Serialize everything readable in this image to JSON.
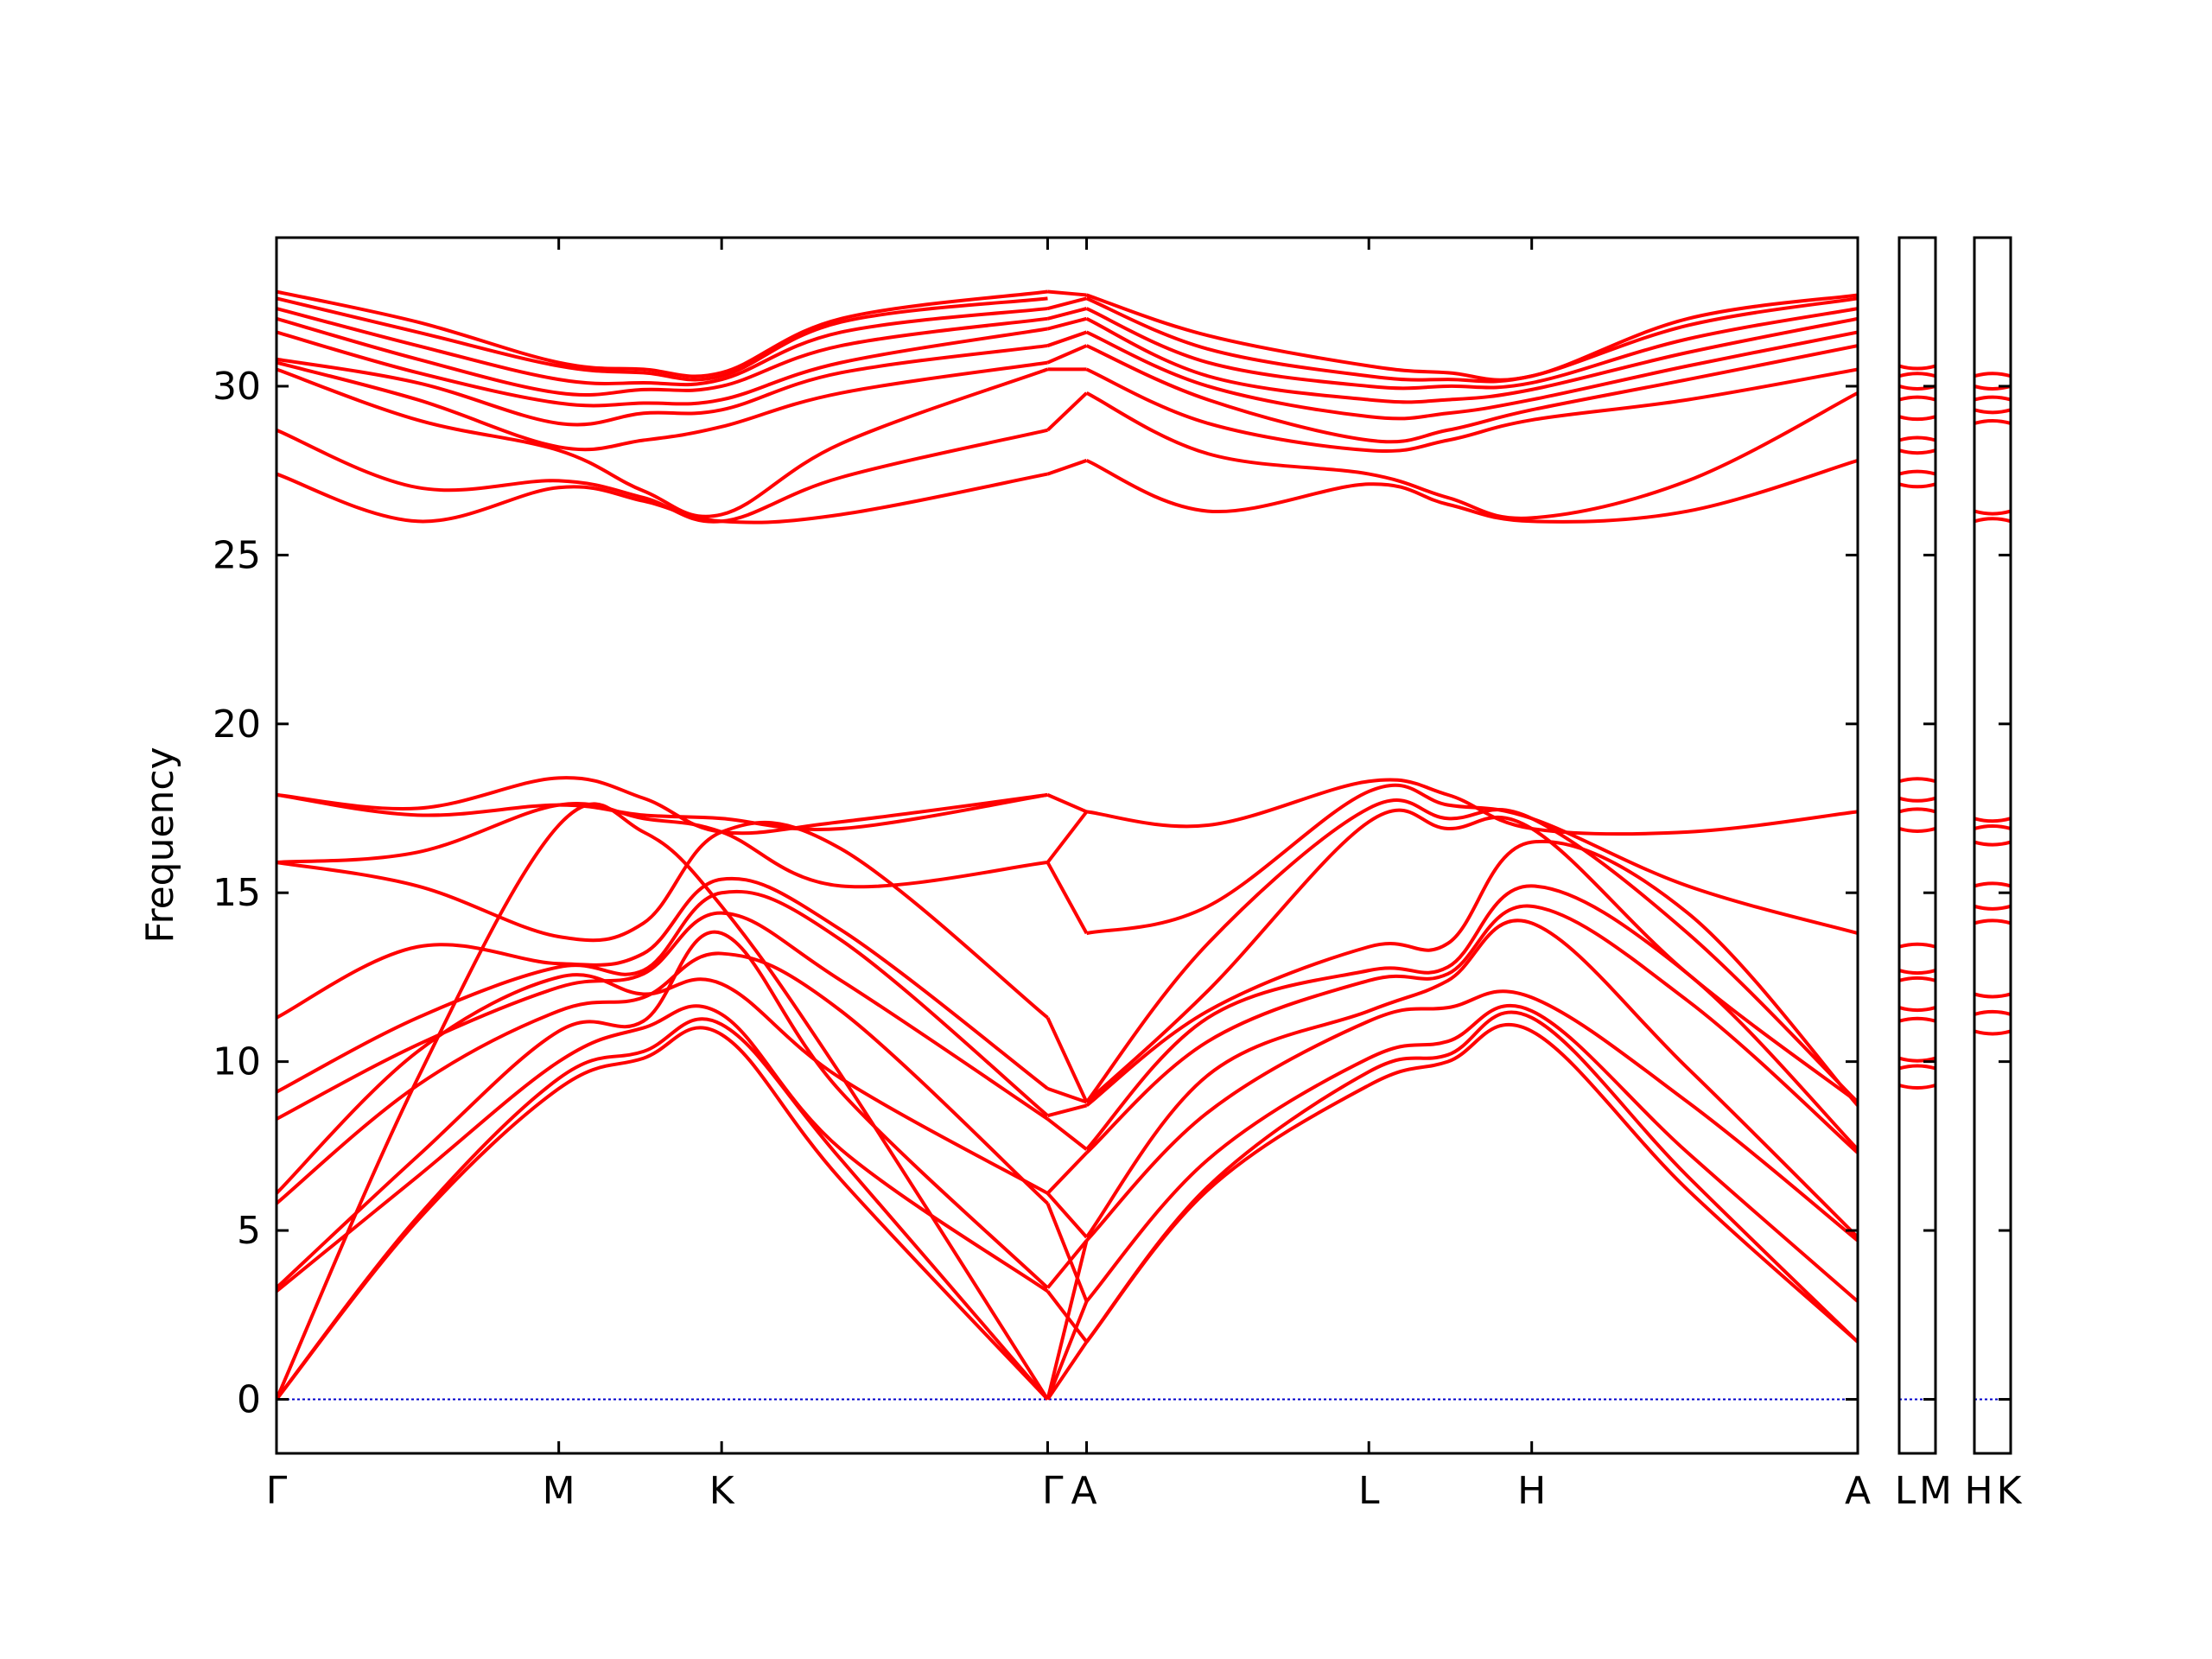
{
  "chart_data": {
    "type": "line",
    "title": "",
    "xlabel": "",
    "ylabel": "Frequency",
    "ylim": [
      -1.6,
      34.4
    ],
    "yticks": [
      0,
      5,
      10,
      15,
      20,
      25,
      30
    ],
    "grid": false,
    "legend": "none",
    "line_color": "#ff0000",
    "zero_line_color": "#0000cc",
    "x_ticks": [
      {
        "label": "Γ",
        "x": 0.0
      },
      {
        "label": "M",
        "x": 1.0
      },
      {
        "label": "K",
        "x": 1.577
      },
      {
        "label": "Γ",
        "x": 2.732
      },
      {
        "label": "A",
        "x": 2.87
      },
      {
        "label": "L",
        "x": 3.87
      },
      {
        "label": "H",
        "x": 4.447
      },
      {
        "label": "A",
        "x": 5.602
      }
    ],
    "side_panels": [
      {
        "labels": [
          "L",
          "M"
        ],
        "frequencies": [
          9.3,
          9.8,
          10.1,
          11.2,
          11.6,
          12.4,
          12.7,
          13.4,
          16.9,
          17.4,
          17.8,
          18.3,
          27.1,
          27.4,
          28.1,
          28.4,
          29.1,
          29.6,
          30.0,
          30.3,
          30.6
        ]
      },
      {
        "labels": [
          "H",
          "K"
        ],
        "frequencies": [
          10.9,
          11.4,
          12.0,
          14.1,
          14.6,
          15.2,
          16.5,
          16.9,
          17.2,
          26.0,
          26.3,
          28.9,
          29.3,
          29.6,
          30.0,
          30.3
        ]
      }
    ],
    "series": [
      {
        "x": [
          0.0,
          0.5,
          1.0,
          1.3,
          1.577,
          2.0,
          2.732
        ],
        "values": [
          0.0,
          5.3,
          9.2,
          10.1,
          10.8,
          6.5,
          0.0
        ]
      },
      {
        "x": [
          0.0,
          0.5,
          1.0,
          1.3,
          1.577,
          2.0,
          2.732
        ],
        "values": [
          0.0,
          5.4,
          9.5,
          10.3,
          11.1,
          7.1,
          0.0
        ]
      },
      {
        "x": [
          0.0,
          0.5,
          1.0,
          1.3,
          1.577,
          2.0,
          2.732
        ],
        "values": [
          0.0,
          9.5,
          17.0,
          16.8,
          14.6,
          9.6,
          0.0
        ]
      },
      {
        "x": [
          0.0,
          0.5,
          1.0,
          1.3,
          1.577,
          2.0,
          2.732
        ],
        "values": [
          3.2,
          6.6,
          10.0,
          11.0,
          11.4,
          7.4,
          3.2
        ]
      },
      {
        "x": [
          0.0,
          0.5,
          1.0,
          1.3,
          1.577,
          2.0,
          2.732
        ],
        "values": [
          3.3,
          7.2,
          10.9,
          11.2,
          13.8,
          9.1,
          3.3
        ]
      },
      {
        "x": [
          0.0,
          0.5,
          1.0,
          1.3,
          1.577,
          2.0,
          2.732
        ],
        "values": [
          5.8,
          9.3,
          11.5,
          11.9,
          13.2,
          11.5,
          5.8
        ]
      },
      {
        "x": [
          0.0,
          0.5,
          1.0,
          1.3,
          1.577,
          2.0,
          2.732
        ],
        "values": [
          6.1,
          10.3,
          12.5,
          12.0,
          12.3,
          9.5,
          6.1
        ]
      },
      {
        "x": [
          0.0,
          0.5,
          1.0,
          1.3,
          1.577,
          2.0,
          2.732
        ],
        "values": [
          8.3,
          10.5,
          12.2,
          12.6,
          14.4,
          12.4,
          8.3
        ]
      },
      {
        "x": [
          0.0,
          0.5,
          1.0,
          1.3,
          1.577,
          2.0,
          2.732
        ],
        "values": [
          9.1,
          11.3,
          12.8,
          12.7,
          15.0,
          13.6,
          8.4
        ]
      },
      {
        "x": [
          0.0,
          0.5,
          1.0,
          1.3,
          1.577,
          2.0,
          2.732
        ],
        "values": [
          11.3,
          13.4,
          12.9,
          13.2,
          15.4,
          13.9,
          9.2
        ]
      },
      {
        "x": [
          0.0,
          0.5,
          1.0,
          1.3,
          1.577,
          2.0,
          2.732
        ],
        "values": [
          15.9,
          15.2,
          13.7,
          14.1,
          16.8,
          16.3,
          11.3
        ]
      },
      {
        "x": [
          0.0,
          0.5,
          1.0,
          1.3,
          1.577,
          2.0,
          2.732
        ],
        "values": [
          15.9,
          16.2,
          17.6,
          17.2,
          16.8,
          15.2,
          15.9
        ]
      },
      {
        "x": [
          0.0,
          0.5,
          1.0,
          1.3,
          1.577,
          2.0,
          2.732
        ],
        "values": [
          17.9,
          17.3,
          17.6,
          17.3,
          17.2,
          16.9,
          17.9
        ]
      },
      {
        "x": [
          0.0,
          0.5,
          1.0,
          1.3,
          1.577,
          2.0,
          2.732
        ],
        "values": [
          17.9,
          17.5,
          18.4,
          17.8,
          16.8,
          17.1,
          17.9
        ]
      },
      {
        "x": [
          0.0,
          0.5,
          1.0,
          1.3,
          1.577,
          2.0,
          2.732
        ],
        "values": [
          27.4,
          26.0,
          27.0,
          26.6,
          26.0,
          26.2,
          27.4
        ]
      },
      {
        "x": [
          0.0,
          0.5,
          1.0,
          1.3,
          1.577,
          2.0,
          2.732
        ],
        "values": [
          28.7,
          27.0,
          27.2,
          26.7,
          26.0,
          27.3,
          28.7
        ]
      },
      {
        "x": [
          0.0,
          0.5,
          1.0,
          1.3,
          1.577,
          2.0,
          2.732
        ],
        "values": [
          30.5,
          29.0,
          28.1,
          26.9,
          26.2,
          28.3,
          30.5
        ]
      },
      {
        "x": [
          0.0,
          0.5,
          1.0,
          1.3,
          1.577,
          2.0,
          2.732
        ],
        "values": [
          30.7,
          29.6,
          28.2,
          28.4,
          28.8,
          29.8,
          30.7
        ]
      },
      {
        "x": [
          0.0,
          0.5,
          1.0,
          1.3,
          1.577,
          2.0,
          2.732
        ],
        "values": [
          30.8,
          30.1,
          28.9,
          29.2,
          29.3,
          30.4,
          31.2
        ]
      },
      {
        "x": [
          0.0,
          0.5,
          1.0,
          1.3,
          1.577,
          2.0,
          2.732
        ],
        "values": [
          31.6,
          30.4,
          29.5,
          29.5,
          29.6,
          30.7,
          31.7
        ]
      },
      {
        "x": [
          0.0,
          0.5,
          1.0,
          1.3,
          1.577,
          2.0,
          2.732
        ],
        "values": [
          32.0,
          30.8,
          29.8,
          29.9,
          30.0,
          31.2,
          32.0
        ]
      },
      {
        "x": [
          0.0,
          0.5,
          1.0,
          1.3,
          1.577,
          2.0,
          2.732
        ],
        "values": [
          32.3,
          31.2,
          30.2,
          30.1,
          30.2,
          31.6,
          32.3
        ]
      },
      {
        "x": [
          0.0,
          0.5,
          1.0,
          1.3,
          1.577,
          2.0,
          2.732
        ],
        "values": [
          32.6,
          31.6,
          30.6,
          30.4,
          30.3,
          31.9,
          32.6
        ]
      },
      {
        "x": [
          0.0,
          0.5,
          1.0,
          1.3,
          1.577,
          2.0,
          2.732
        ],
        "values": [
          32.8,
          31.9,
          30.7,
          30.5,
          30.4,
          32.0,
          32.8
        ]
      },
      {
        "x": [
          2.732,
          2.87
        ],
        "values": [
          0.0,
          1.7
        ]
      },
      {
        "x": [
          2.732,
          2.87
        ],
        "values": [
          3.2,
          1.7
        ]
      },
      {
        "x": [
          2.732,
          2.87
        ],
        "values": [
          0.0,
          2.9
        ]
      },
      {
        "x": [
          2.732,
          2.87
        ],
        "values": [
          5.8,
          2.9
        ]
      },
      {
        "x": [
          2.732,
          2.87
        ],
        "values": [
          0.0,
          4.7
        ]
      },
      {
        "x": [
          2.732,
          2.87
        ],
        "values": [
          3.3,
          4.7
        ]
      },
      {
        "x": [
          2.732,
          2.87
        ],
        "values": [
          6.1,
          4.8
        ]
      },
      {
        "x": [
          2.732,
          2.87
        ],
        "values": [
          6.1,
          7.3
        ]
      },
      {
        "x": [
          2.732,
          2.87
        ],
        "values": [
          8.3,
          7.4
        ]
      },
      {
        "x": [
          2.732,
          2.87
        ],
        "values": [
          8.4,
          8.7
        ]
      },
      {
        "x": [
          2.732,
          2.87
        ],
        "values": [
          9.2,
          8.8
        ]
      },
      {
        "x": [
          2.732,
          2.87
        ],
        "values": [
          11.3,
          8.8
        ]
      },
      {
        "x": [
          2.732,
          2.87
        ],
        "values": [
          15.9,
          13.8
        ]
      },
      {
        "x": [
          2.732,
          2.87
        ],
        "values": [
          15.9,
          17.4
        ]
      },
      {
        "x": [
          2.732,
          2.87
        ],
        "values": [
          17.9,
          17.4
        ]
      },
      {
        "x": [
          2.732,
          2.87
        ],
        "values": [
          27.4,
          27.8
        ]
      },
      {
        "x": [
          2.732,
          2.87
        ],
        "values": [
          28.7,
          29.8
        ]
      },
      {
        "x": [
          2.732,
          2.87
        ],
        "values": [
          30.5,
          30.5
        ]
      },
      {
        "x": [
          2.732,
          2.87
        ],
        "values": [
          30.7,
          31.2
        ]
      },
      {
        "x": [
          2.732,
          2.87
        ],
        "values": [
          31.2,
          31.6
        ]
      },
      {
        "x": [
          2.732,
          2.87
        ],
        "values": [
          31.7,
          32.0
        ]
      },
      {
        "x": [
          2.732,
          2.87
        ],
        "values": [
          32.0,
          32.3
        ]
      },
      {
        "x": [
          2.732,
          2.87
        ],
        "values": [
          32.3,
          32.6
        ]
      },
      {
        "x": [
          2.732,
          2.87
        ],
        "values": [
          32.8,
          32.7
        ]
      },
      {
        "x": [
          2.87,
          3.3,
          3.87,
          4.15,
          4.447,
          5.0,
          5.602
        ],
        "values": [
          1.7,
          6.2,
          9.3,
          10.0,
          10.9,
          6.2,
          1.7
        ]
      },
      {
        "x": [
          2.87,
          3.3,
          3.87,
          4.15,
          4.447,
          5.0,
          5.602
        ],
        "values": [
          1.7,
          6.3,
          9.7,
          10.2,
          11.3,
          6.6,
          1.7
        ]
      },
      {
        "x": [
          2.87,
          3.3,
          3.87,
          4.15,
          4.447,
          5.0,
          5.602
        ],
        "values": [
          2.9,
          7.1,
          10.1,
          10.6,
          11.5,
          7.3,
          2.9
        ]
      },
      {
        "x": [
          2.87,
          3.3,
          3.87,
          4.15,
          4.447,
          5.0,
          5.602
        ],
        "values": [
          4.7,
          8.5,
          11.2,
          11.6,
          11.9,
          8.8,
          4.7
        ]
      },
      {
        "x": [
          2.87,
          3.3,
          3.87,
          4.15,
          4.447,
          5.0,
          5.602
        ],
        "values": [
          4.8,
          9.6,
          11.5,
          12.4,
          14.1,
          9.8,
          4.8
        ]
      },
      {
        "x": [
          2.87,
          3.3,
          3.87,
          4.15,
          4.447,
          5.0,
          5.602
        ],
        "values": [
          7.3,
          10.6,
          12.4,
          12.6,
          14.6,
          11.8,
          7.3
        ]
      },
      {
        "x": [
          2.87,
          3.3,
          3.87,
          4.15,
          4.447,
          5.0,
          5.602
        ],
        "values": [
          7.4,
          11.3,
          12.7,
          12.8,
          15.2,
          12.6,
          7.4
        ]
      },
      {
        "x": [
          2.87,
          3.3,
          3.87,
          4.15,
          4.447,
          5.0,
          5.602
        ],
        "values": [
          8.7,
          11.5,
          13.4,
          13.5,
          16.5,
          14.4,
          8.7
        ]
      },
      {
        "x": [
          2.87,
          3.3,
          3.87,
          4.15,
          4.447,
          5.0,
          5.602
        ],
        "values": [
          8.8,
          12.1,
          17.1,
          16.9,
          16.9,
          12.6,
          8.8
        ]
      },
      {
        "x": [
          2.87,
          3.3,
          3.87,
          4.15,
          4.447,
          5.0,
          5.602
        ],
        "values": [
          8.8,
          13.5,
          17.5,
          17.2,
          17.2,
          13.8,
          8.8
        ]
      },
      {
        "x": [
          2.87,
          3.3,
          3.87,
          4.15,
          4.447,
          5.0,
          5.602
        ],
        "values": [
          13.8,
          14.6,
          18.0,
          17.6,
          17.2,
          15.2,
          13.8
        ]
      },
      {
        "x": [
          2.87,
          3.3,
          3.87,
          4.15,
          4.447,
          5.0,
          5.602
        ],
        "values": [
          17.4,
          17.0,
          18.3,
          17.9,
          16.9,
          16.8,
          17.4
        ]
      },
      {
        "x": [
          2.87,
          3.3,
          3.87,
          4.15,
          4.447,
          5.0,
          5.602
        ],
        "values": [
          27.8,
          26.3,
          27.1,
          26.5,
          26.0,
          26.3,
          27.8
        ]
      },
      {
        "x": [
          2.87,
          3.3,
          3.87,
          4.15,
          4.447,
          5.0,
          5.602
        ],
        "values": [
          29.8,
          28.0,
          27.4,
          26.7,
          26.1,
          27.2,
          29.8
        ]
      },
      {
        "x": [
          2.87,
          3.3,
          3.87,
          4.15,
          4.447,
          5.0,
          5.602
        ],
        "values": [
          30.5,
          28.9,
          28.1,
          28.4,
          29.0,
          29.6,
          30.5
        ]
      },
      {
        "x": [
          2.87,
          3.3,
          3.87,
          4.15,
          4.447,
          5.0,
          5.602
        ],
        "values": [
          31.2,
          29.6,
          28.4,
          28.7,
          29.3,
          30.2,
          31.2
        ]
      },
      {
        "x": [
          2.87,
          3.3,
          3.87,
          4.15,
          4.447,
          5.0,
          5.602
        ],
        "values": [
          31.6,
          30.0,
          29.1,
          29.2,
          29.6,
          30.6,
          31.6
        ]
      },
      {
        "x": [
          2.87,
          3.3,
          3.87,
          4.15,
          4.447,
          5.0,
          5.602
        ],
        "values": [
          32.0,
          30.3,
          29.6,
          29.6,
          29.9,
          31.0,
          32.0
        ]
      },
      {
        "x": [
          2.87,
          3.3,
          3.87,
          4.15,
          4.447,
          5.0,
          5.602
        ],
        "values": [
          32.3,
          30.7,
          30.0,
          30.0,
          30.1,
          31.4,
          32.3
        ]
      },
      {
        "x": [
          2.87,
          3.3,
          3.87,
          4.15,
          4.447,
          5.0,
          5.602
        ],
        "values": [
          32.6,
          31.1,
          30.3,
          30.2,
          30.3,
          31.8,
          32.6
        ]
      },
      {
        "x": [
          2.87,
          3.3,
          3.87,
          4.15,
          4.447,
          5.0,
          5.602
        ],
        "values": [
          32.7,
          31.5,
          30.6,
          30.4,
          30.3,
          32.0,
          32.7
        ]
      }
    ]
  }
}
